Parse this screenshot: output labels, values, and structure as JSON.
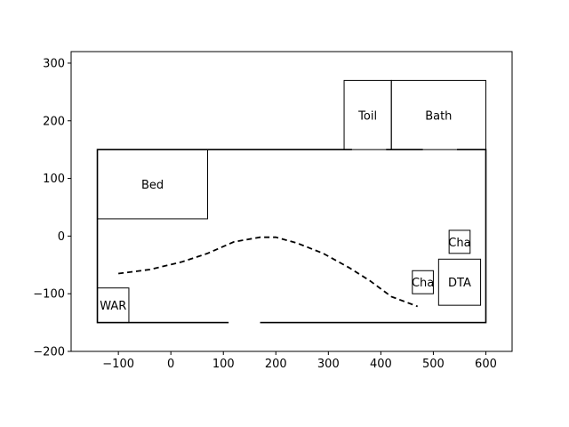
{
  "chart_data": {
    "type": "floorplan",
    "title": "",
    "xlabel": "",
    "ylabel": "",
    "xlim": [
      -190,
      650
    ],
    "ylim": [
      -200,
      320
    ],
    "grid": false,
    "xticks": [
      -100,
      0,
      100,
      200,
      300,
      400,
      500,
      600
    ],
    "yticks": [
      -200,
      -100,
      0,
      100,
      200,
      300
    ],
    "xtick_labels": [
      "−100",
      "0",
      "100",
      "200",
      "300",
      "400",
      "500",
      "600"
    ],
    "ytick_labels": [
      "−200",
      "−100",
      "0",
      "100",
      "200",
      "300"
    ],
    "boundary": {
      "x0": -140,
      "x1": 600,
      "y0": -150,
      "y1": 150
    },
    "doors": [
      {
        "x0": 345,
        "x1": 410,
        "y": 150
      },
      {
        "x0": 480,
        "x1": 545,
        "y": 150
      },
      {
        "x0": 110,
        "x1": 170,
        "y": -150
      }
    ],
    "rooms": [
      {
        "id": "toilet",
        "label": "Toil",
        "x0": 330,
        "x1": 420,
        "y0": 150,
        "y1": 270
      },
      {
        "id": "bath",
        "label": "Bath",
        "x0": 420,
        "x1": 600,
        "y0": 150,
        "y1": 270
      },
      {
        "id": "bed",
        "label": "Bed",
        "x0": -140,
        "x1": 70,
        "y0": 30,
        "y1": 150
      },
      {
        "id": "wardrobe",
        "label": "WAR",
        "x0": -140,
        "x1": -80,
        "y0": -150,
        "y1": -90
      },
      {
        "id": "chair-1",
        "label": "Cha",
        "x0": 460,
        "x1": 500,
        "y0": -100,
        "y1": -60
      },
      {
        "id": "dta",
        "label": "DTA",
        "x0": 510,
        "x1": 590,
        "y0": -120,
        "y1": -40
      },
      {
        "id": "chair-2",
        "label": "Cha",
        "x0": 530,
        "x1": 570,
        "y0": -30,
        "y1": 10
      }
    ],
    "path": {
      "style": "dashed",
      "x": [
        -100,
        -40,
        20,
        70,
        120,
        170,
        200,
        240,
        290,
        340,
        380,
        420,
        470
      ],
      "y": [
        -65,
        -58,
        -45,
        -30,
        -10,
        -2,
        -2,
        -12,
        -30,
        -55,
        -78,
        -105,
        -122
      ]
    }
  }
}
